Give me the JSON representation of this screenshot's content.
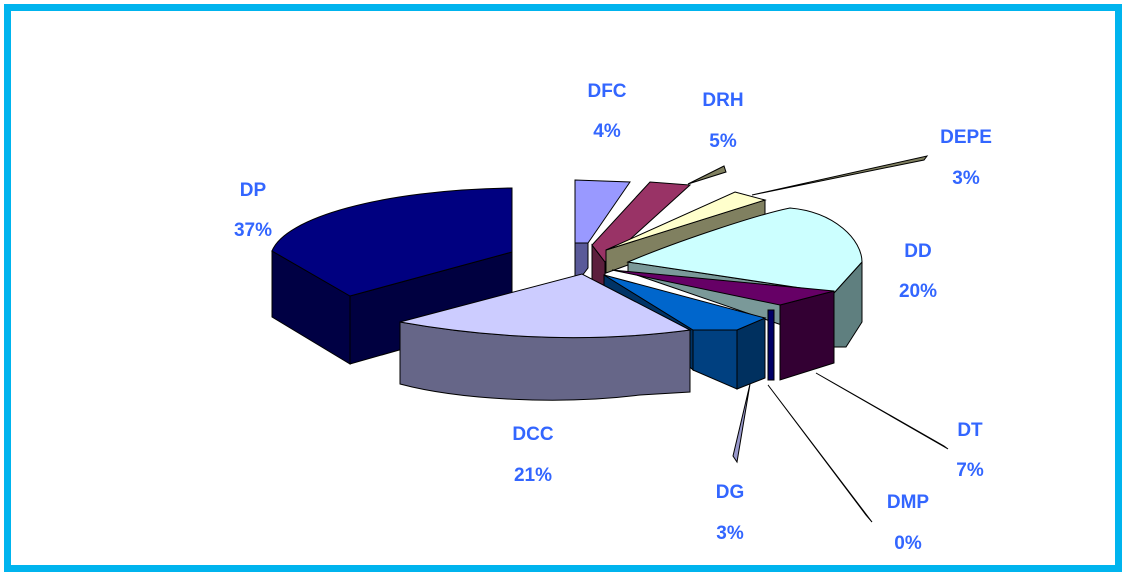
{
  "chart_data": {
    "type": "pie",
    "style": "3d-exploded",
    "slices": [
      {
        "label": "DP",
        "pct": "37%",
        "value": 37,
        "color": "#000080"
      },
      {
        "label": "DFC",
        "pct": "4%",
        "value": 4,
        "color": "#9999ff"
      },
      {
        "label": "DRH",
        "pct": "5%",
        "value": 5,
        "color": "#993366"
      },
      {
        "label": "DEPE",
        "pct": "3%",
        "value": 3,
        "color": "#ffffcc"
      },
      {
        "label": "DD",
        "pct": "20%",
        "value": 20,
        "color": "#ccffff"
      },
      {
        "label": "DT",
        "pct": "7%",
        "value": 7,
        "color": "#660066"
      },
      {
        "label": "DMP",
        "pct": "0%",
        "value": 0,
        "color": "#000066"
      },
      {
        "label": "DG",
        "pct": "3%",
        "value": 3,
        "color": "#0066cc"
      },
      {
        "label": "DCC",
        "pct": "21%",
        "value": 21,
        "color": "#ccccff"
      }
    ],
    "label_color": "#3366ff",
    "border_color": "#00b4ee"
  }
}
